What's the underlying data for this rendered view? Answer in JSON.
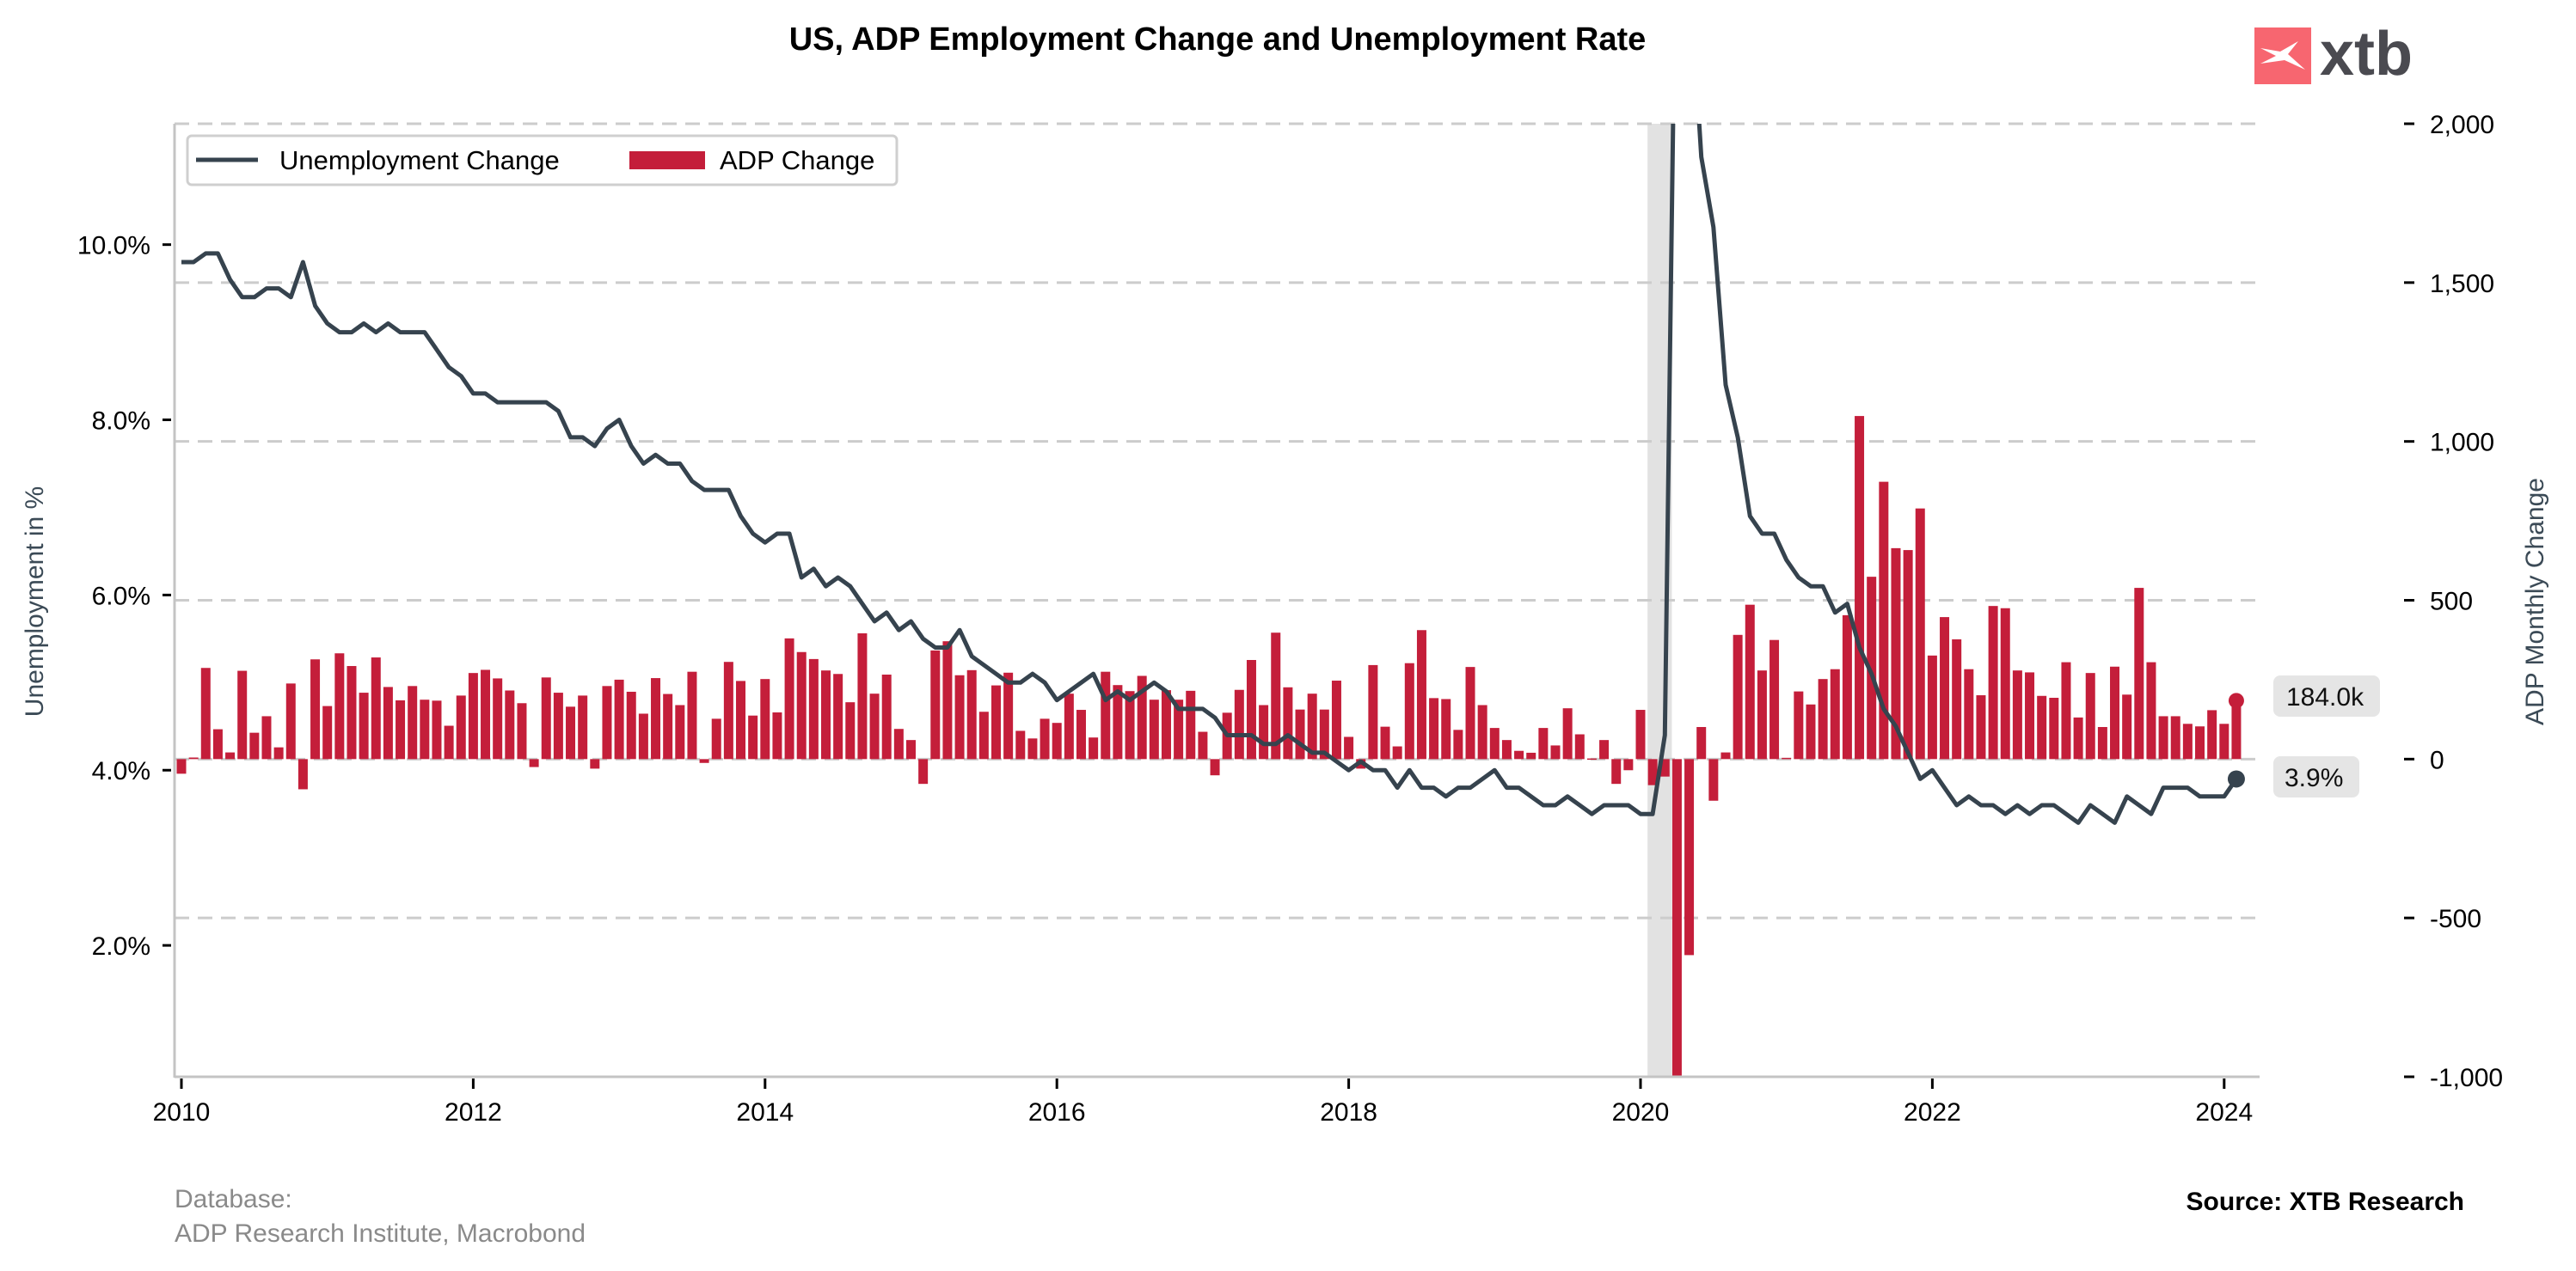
{
  "header": {
    "title": "US, ADP Employment Change and Unemployment Rate",
    "logo_text": "xtb",
    "logo_color": "#f76670"
  },
  "footer": {
    "database_label": "Database:",
    "database_sources": "ADP Research Institute, Macrobond",
    "source": "Source: XTB Research"
  },
  "chart_data": {
    "type": "bar+line",
    "title": "US, ADP Employment Change and Unemployment Rate",
    "x_start": "2010-01",
    "x_frequency": "monthly",
    "x_range": [
      2009.95,
      2024.25
    ],
    "x_ticks": [
      2010,
      2012,
      2014,
      2016,
      2018,
      2020,
      2022,
      2024
    ],
    "x_tick_labels": [
      "2010",
      "2012",
      "2014",
      "2016",
      "2018",
      "2020",
      "2022",
      "2024"
    ],
    "left_axis": {
      "label": "Unemployment in %",
      "range": [
        0.5,
        11.38
      ],
      "ticks": [
        2,
        4,
        6,
        8,
        10
      ],
      "tick_labels": [
        "2.0%",
        "4.0%",
        "6.0%",
        "8.0%",
        "10.0%"
      ]
    },
    "right_axis": {
      "label": "ADP Monthly Change",
      "range": [
        -1000,
        2000
      ],
      "ticks": [
        -1000,
        -500,
        0,
        500,
        1000,
        1500,
        2000
      ],
      "tick_labels": [
        "-1,000",
        "-500",
        "0",
        "500",
        "1,000",
        "1,500",
        "2,000"
      ]
    },
    "grid": "horizontal dashed (right axis)",
    "legend": {
      "position": "top-left",
      "entries": [
        "Unemployment Change",
        "ADP Change"
      ]
    },
    "shaded_region": {
      "from": "2020-02",
      "to": "2020-04",
      "color": "#e2e2e2"
    },
    "series": [
      {
        "name": "Unemployment Change",
        "type": "line",
        "axis": "left",
        "color": "#36434e",
        "values": [
          9.8,
          9.8,
          9.9,
          9.9,
          9.6,
          9.4,
          9.4,
          9.5,
          9.5,
          9.4,
          9.8,
          9.3,
          9.1,
          9.0,
          9.0,
          9.1,
          9.0,
          9.1,
          9.0,
          9.0,
          9.0,
          8.8,
          8.6,
          8.5,
          8.3,
          8.3,
          8.2,
          8.2,
          8.2,
          8.2,
          8.2,
          8.1,
          7.8,
          7.8,
          7.7,
          7.9,
          8.0,
          7.7,
          7.5,
          7.6,
          7.5,
          7.5,
          7.3,
          7.2,
          7.2,
          7.2,
          6.9,
          6.7,
          6.6,
          6.7,
          6.7,
          6.2,
          6.3,
          6.1,
          6.2,
          6.1,
          5.9,
          5.7,
          5.8,
          5.6,
          5.7,
          5.5,
          5.4,
          5.4,
          5.6,
          5.3,
          5.2,
          5.1,
          5.0,
          5.0,
          5.1,
          5.0,
          4.8,
          4.9,
          5.0,
          5.1,
          4.8,
          4.9,
          4.8,
          4.9,
          5.0,
          4.9,
          4.7,
          4.7,
          4.7,
          4.6,
          4.4,
          4.4,
          4.4,
          4.3,
          4.3,
          4.4,
          4.3,
          4.2,
          4.2,
          4.1,
          4.0,
          4.1,
          4.0,
          4.0,
          3.8,
          4.0,
          3.8,
          3.8,
          3.7,
          3.8,
          3.8,
          3.9,
          4.0,
          3.8,
          3.8,
          3.7,
          3.6,
          3.6,
          3.7,
          3.6,
          3.5,
          3.6,
          3.6,
          3.6,
          3.5,
          3.5,
          4.4,
          14.7,
          13.2,
          11.0,
          10.2,
          8.4,
          7.8,
          6.9,
          6.7,
          6.7,
          6.4,
          6.2,
          6.1,
          6.1,
          5.8,
          5.9,
          5.4,
          5.1,
          4.7,
          4.5,
          4.2,
          3.9,
          4.0,
          3.8,
          3.6,
          3.7,
          3.6,
          3.6,
          3.5,
          3.6,
          3.5,
          3.6,
          3.6,
          3.5,
          3.4,
          3.6,
          3.5,
          3.4,
          3.7,
          3.6,
          3.5,
          3.8,
          3.8,
          3.8,
          3.7,
          3.7,
          3.7,
          3.9
        ],
        "last_value_label": "3.9%"
      },
      {
        "name": "ADP Change",
        "type": "bar",
        "axis": "right",
        "color": "#c41e3a",
        "unit": "thousands",
        "values": [
          -46,
          5,
          287,
          94,
          21,
          278,
          83,
          135,
          37,
          238,
          -95,
          314,
          167,
          333,
          293,
          209,
          320,
          227,
          185,
          230,
          187,
          184,
          105,
          200,
          271,
          281,
          254,
          216,
          176,
          -25,
          257,
          209,
          165,
          200,
          -30,
          230,
          250,
          212,
          143,
          255,
          205,
          170,
          275,
          -12,
          127,
          306,
          246,
          137,
          252,
          147,
          380,
          337,
          315,
          279,
          268,
          179,
          396,
          206,
          266,
          95,
          60,
          -78,
          342,
          371,
          264,
          280,
          149,
          232,
          272,
          89,
          65,
          127,
          114,
          206,
          155,
          68,
          275,
          233,
          214,
          262,
          187,
          217,
          187,
          215,
          86,
          -51,
          146,
          218,
          312,
          170,
          398,
          226,
          156,
          206,
          156,
          247,
          70,
          -30,
          296,
          102,
          40,
          302,
          406,
          192,
          189,
          92,
          290,
          170,
          98,
          60,
          26,
          20,
          98,
          43,
          160,
          78,
          2,
          60,
          -78,
          -35,
          155,
          -82,
          -55,
          -1000,
          -617,
          101,
          -131,
          21,
          391,
          486,
          279,
          375,
          4,
          213,
          172,
          252,
          283,
          453,
          1080,
          574,
          873,
          664,
          658,
          789,
          326,
          447,
          377,
          283,
          201,
          482,
          475,
          279,
          273,
          199,
          193,
          305,
          131,
          271,
          101,
          291,
          203,
          539,
          305,
          135,
          135,
          111,
          103,
          154,
          111,
          184
        ],
        "last_value_label": "184.0k"
      }
    ]
  }
}
